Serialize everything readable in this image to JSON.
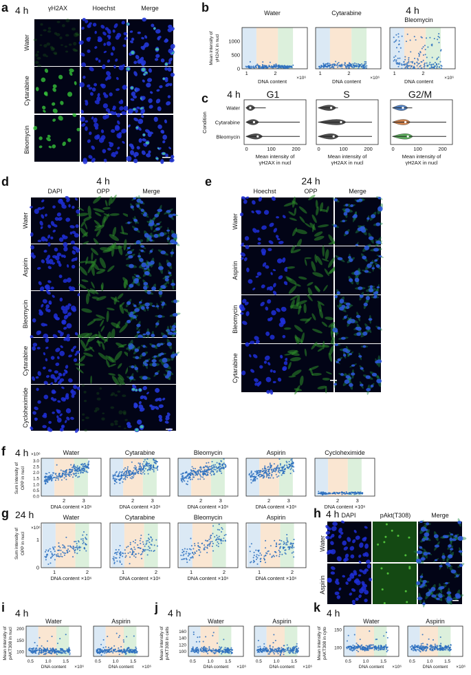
{
  "figure": {
    "panel_a": {
      "label": "a",
      "time": "4 h",
      "columns": [
        "γH2AX",
        "Hoechst",
        "Merge"
      ],
      "rows": [
        "Water",
        "Cytarabine",
        "Bleomycin"
      ]
    },
    "panel_b": {
      "label": "b",
      "time": "4 h",
      "ylabel": "Mean intensity of γH2AX in nucl",
      "xlabel": "DNA content",
      "xexp": "×10⁶"
    },
    "panel_c": {
      "label": "c",
      "time": "4 h",
      "ylabel": "Condition",
      "xlabel": "Mean intensity of γH2AX in nucl"
    },
    "panel_d": {
      "label": "d",
      "time": "4 h",
      "columns": [
        "DAPI",
        "OPP",
        "Merge"
      ],
      "rows": [
        "Water",
        "Aspirin",
        "Bleomycin",
        "Cytarabine",
        "Cycloheximide"
      ]
    },
    "panel_e": {
      "label": "e",
      "time": "24 h",
      "columns": [
        "Hoechst",
        "OPP",
        "Merge"
      ],
      "rows": [
        "Water",
        "Aspirin",
        "Bleomycin",
        "Cytarabine"
      ]
    },
    "panel_f": {
      "label": "f",
      "time": "4 h",
      "ylabel": "Sum intensity of OPP in nucl",
      "yexp": "×10⁶",
      "xlabel": "DNA content",
      "xexp": "×10⁶"
    },
    "panel_g": {
      "label": "g",
      "time": "24 h",
      "ylabel": "Sum intensity of OPP in nucl",
      "yexp": "×10⁶",
      "xlabel": "DNA content",
      "xexp": "×10⁶"
    },
    "panel_h": {
      "label": "h",
      "time": "4 h",
      "columns": [
        "DAPI",
        "pAkt(T308)",
        "Merge"
      ],
      "rows": [
        "Water",
        "Aspirin"
      ]
    },
    "panel_i": {
      "label": "i",
      "time": "4 h",
      "ylabel": "Mean intensity of pAKT308 in nucl",
      "xlabel": "DNA content",
      "xexp": "×10⁶"
    },
    "panel_j": {
      "label": "j",
      "time": "4 h",
      "ylabel": "Mean intensity of pAKT308 in cells",
      "xlabel": "DNA content",
      "xexp": "×10⁶"
    },
    "panel_k": {
      "label": "k",
      "time": "4 h",
      "ylabel": "Mean intensity of pAKT308 in cyto",
      "xlabel": "DNA content",
      "xexp": "×10⁶"
    }
  },
  "chart_data": [
    {
      "panel": "b",
      "type": "scatter",
      "titles": [
        "Water",
        "Cytarabine",
        "Bleomycin"
      ],
      "xlim": [
        0.9,
        3.2
      ],
      "ylim": [
        0,
        1500
      ],
      "xticks": [
        "1",
        "2"
      ],
      "yticks": [
        "0",
        "500",
        "1000"
      ],
      "levels": [
        50,
        120,
        420
      ],
      "phase_bands": [
        "G1",
        "S",
        "G2/M"
      ]
    },
    {
      "panel": "c",
      "type": "violin",
      "titles": [
        "G1",
        "S",
        "G2/M"
      ],
      "categories": [
        "Water",
        "Cytarabine",
        "Bleomycin"
      ],
      "xlim": [
        0,
        250
      ],
      "xticks": [
        "0",
        "100",
        "200"
      ],
      "medians_estimated": [
        [
          25,
          40,
          55
        ],
        [
          60,
          100,
          70
        ],
        [
          50,
          60,
          70
        ]
      ]
    },
    {
      "panel": "f",
      "type": "scatter",
      "titles": [
        "Water",
        "Cytarabine",
        "Bleomycin",
        "Aspirin",
        "Cycloheximide"
      ],
      "xticks": [
        "2",
        "3"
      ],
      "yticks": [
        "0.0",
        "0.5",
        "1.0",
        "1.5",
        "2.0",
        "2.5",
        "3.0"
      ],
      "ylim": [
        0,
        3.2
      ],
      "levels": [
        2.0,
        2.2,
        2.2,
        2.2,
        0.3
      ]
    },
    {
      "panel": "g",
      "type": "scatter",
      "titles": [
        "Water",
        "Cytarabine",
        "Bleomycin",
        "Aspirin"
      ],
      "xticks": [
        "1",
        "2"
      ],
      "yticks": [
        "0",
        "1"
      ],
      "ylim": [
        0,
        1.6
      ],
      "levels": [
        0.9,
        0.9,
        0.8,
        0.7
      ]
    },
    {
      "panel": "i",
      "type": "scatter",
      "titles": [
        "Water",
        "Aspirin"
      ],
      "xticks": [
        "0.5",
        "1.0",
        "1.5"
      ],
      "yticks": [
        "100",
        "150",
        "200"
      ],
      "ylim": [
        80,
        210
      ]
    },
    {
      "panel": "j",
      "type": "scatter",
      "titles": [
        "Water",
        "Aspirin"
      ],
      "xticks": [
        "0.5",
        "1.0",
        "1.5"
      ],
      "yticks": [
        "100",
        "120",
        "140",
        "160"
      ],
      "ylim": [
        85,
        175
      ]
    },
    {
      "panel": "k",
      "type": "scatter",
      "titles": [
        "Water",
        "Aspirin"
      ],
      "xticks": [
        "0.5",
        "1.0",
        "1.5"
      ],
      "yticks": [
        "100",
        "150"
      ],
      "ylim": [
        75,
        160
      ]
    }
  ]
}
